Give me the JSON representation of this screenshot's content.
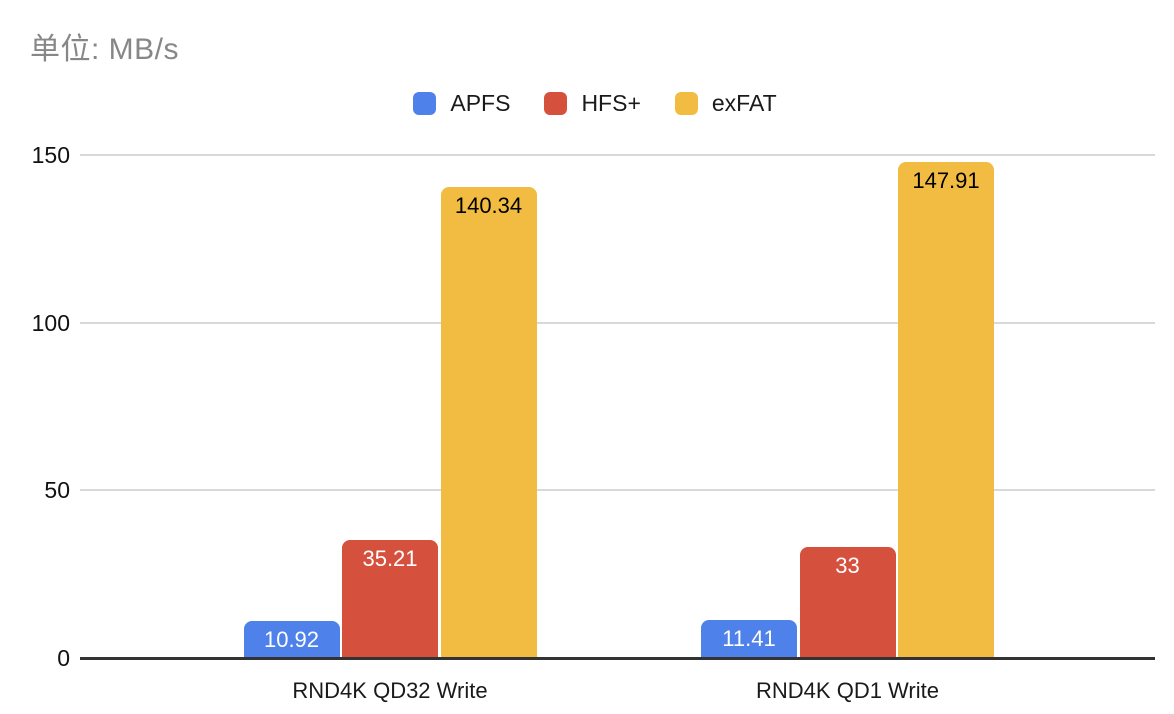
{
  "chart_data": {
    "type": "bar",
    "title": "单位: MB/s",
    "xlabel": "",
    "ylabel": "",
    "categories": [
      "RND4K QD32 Write",
      "RND4K QD1 Write"
    ],
    "series": [
      {
        "name": "APFS",
        "color": "#4e81e9",
        "label_color": "#ffffff",
        "values": [
          10.92,
          11.41
        ],
        "labels": [
          "10.92",
          "11.41"
        ]
      },
      {
        "name": "HFS+",
        "color": "#d6503e",
        "label_color": "#ffffff",
        "values": [
          35.21,
          33
        ],
        "labels": [
          "35.21",
          "33"
        ]
      },
      {
        "name": "exFAT",
        "color": "#f2bc42",
        "label_color": "#000000",
        "values": [
          140.34,
          147.91
        ],
        "labels": [
          "140.34",
          "147.91"
        ]
      }
    ],
    "ylim": [
      0,
      150
    ],
    "yticks": [
      0,
      50,
      100,
      150
    ],
    "grid": true,
    "legend_position": "top"
  },
  "colors": {
    "background": "#ffffff",
    "title_text": "#878787",
    "gridline": "#d9d9d9",
    "axis_line": "#333333",
    "tick_text": "#111111",
    "category_text": "#1a1a1a"
  }
}
